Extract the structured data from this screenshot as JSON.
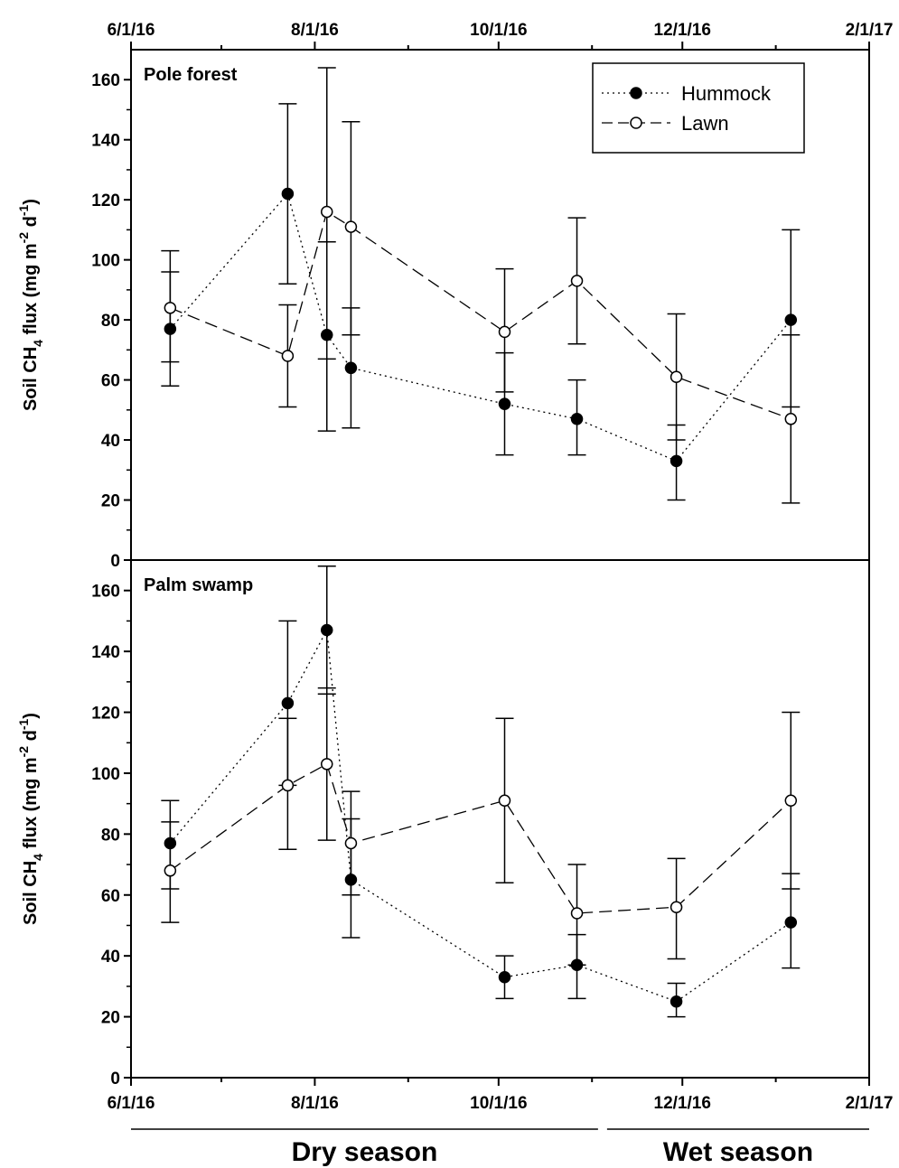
{
  "chart_data": [
    {
      "type": "line",
      "panel_label": "Pole forest",
      "ylabel_parts": [
        "Soil CH",
        "4",
        " flux (mg m",
        "-2",
        " d",
        "-1",
        ")"
      ],
      "ylim": [
        0,
        170
      ],
      "yticks": [
        0,
        20,
        40,
        60,
        80,
        100,
        120,
        140,
        160
      ],
      "xlim": [
        "2016-06-01",
        "2017-02-01"
      ],
      "xtick_labels": [
        "6/1/16",
        "8/1/16",
        "10/1/16",
        "12/1/16",
        "2/1/17"
      ],
      "xtick_label_position": "top",
      "legend": {
        "position": "top-right",
        "entries": [
          "Hummock",
          "Lawn"
        ]
      },
      "series": [
        {
          "name": "Hummock",
          "marker": "filled-circle",
          "line": "dotted",
          "points": [
            {
              "x": "2016-06-14",
              "y": 77,
              "err_low": 58,
              "err_high": 96
            },
            {
              "x": "2016-07-23",
              "y": 122,
              "err_low": 92,
              "err_high": 152
            },
            {
              "x": "2016-08-05",
              "y": 75,
              "err_low": 43,
              "err_high": 106
            },
            {
              "x": "2016-08-13",
              "y": 64,
              "err_low": 44,
              "err_high": 84
            },
            {
              "x": "2016-10-03",
              "y": 52,
              "err_low": 35,
              "err_high": 69
            },
            {
              "x": "2016-10-27",
              "y": 47,
              "err_low": 35,
              "err_high": 60
            },
            {
              "x": "2016-11-29",
              "y": 33,
              "err_low": 20,
              "err_high": 45
            },
            {
              "x": "2017-01-06",
              "y": 80,
              "err_low": 51,
              "err_high": 110
            }
          ]
        },
        {
          "name": "Lawn",
          "marker": "open-circle",
          "line": "dashed",
          "points": [
            {
              "x": "2016-06-14",
              "y": 84,
              "err_low": 66,
              "err_high": 103
            },
            {
              "x": "2016-07-23",
              "y": 68,
              "err_low": 51,
              "err_high": 85
            },
            {
              "x": "2016-08-05",
              "y": 116,
              "err_low": 67,
              "err_high": 164
            },
            {
              "x": "2016-08-13",
              "y": 111,
              "err_low": 75,
              "err_high": 146
            },
            {
              "x": "2016-10-03",
              "y": 76,
              "err_low": 56,
              "err_high": 97
            },
            {
              "x": "2016-10-27",
              "y": 93,
              "err_low": 72,
              "err_high": 114
            },
            {
              "x": "2016-11-29",
              "y": 61,
              "err_low": 40,
              "err_high": 82
            },
            {
              "x": "2017-01-06",
              "y": 47,
              "err_low": 19,
              "err_high": 75
            }
          ]
        }
      ]
    },
    {
      "type": "line",
      "panel_label": "Palm swamp",
      "ylabel_parts": [
        "Soil CH",
        "4",
        " flux (mg m",
        "-2",
        " d",
        "-1",
        ")"
      ],
      "ylim": [
        0,
        170
      ],
      "yticks": [
        0,
        20,
        40,
        60,
        80,
        100,
        120,
        140,
        160
      ],
      "xlim": [
        "2016-06-01",
        "2017-02-01"
      ],
      "xtick_labels": [
        "6/1/16",
        "8/1/16",
        "10/1/16",
        "12/1/16",
        "2/1/17"
      ],
      "xtick_label_position": "bottom",
      "series": [
        {
          "name": "Hummock",
          "marker": "filled-circle",
          "line": "dotted",
          "points": [
            {
              "x": "2016-06-14",
              "y": 77,
              "err_low": 62,
              "err_high": 91
            },
            {
              "x": "2016-07-23",
              "y": 123,
              "err_low": 96,
              "err_high": 150
            },
            {
              "x": "2016-08-05",
              "y": 147,
              "err_low": 126,
              "err_high": 168
            },
            {
              "x": "2016-08-13",
              "y": 65,
              "err_low": 46,
              "err_high": 85
            },
            {
              "x": "2016-10-03",
              "y": 33,
              "err_low": 26,
              "err_high": 40
            },
            {
              "x": "2016-10-27",
              "y": 37,
              "err_low": 26,
              "err_high": 47
            },
            {
              "x": "2016-11-29",
              "y": 25,
              "err_low": 20,
              "err_high": 31
            },
            {
              "x": "2017-01-06",
              "y": 51,
              "err_low": 36,
              "err_high": 67
            }
          ]
        },
        {
          "name": "Lawn",
          "marker": "open-circle",
          "line": "dashed",
          "points": [
            {
              "x": "2016-06-14",
              "y": 68,
              "err_low": 51,
              "err_high": 84
            },
            {
              "x": "2016-07-23",
              "y": 96,
              "err_low": 75,
              "err_high": 118
            },
            {
              "x": "2016-08-05",
              "y": 103,
              "err_low": 78,
              "err_high": 128
            },
            {
              "x": "2016-08-13",
              "y": 77,
              "err_low": 60,
              "err_high": 94
            },
            {
              "x": "2016-10-03",
              "y": 91,
              "err_low": 64,
              "err_high": 118
            },
            {
              "x": "2016-10-27",
              "y": 54,
              "err_low": 37,
              "err_high": 70
            },
            {
              "x": "2016-11-29",
              "y": 56,
              "err_low": 39,
              "err_high": 72
            },
            {
              "x": "2017-01-06",
              "y": 91,
              "err_low": 62,
              "err_high": 120
            }
          ]
        }
      ]
    }
  ],
  "seasons": [
    {
      "label": "Dry season",
      "start": "2016-06-01",
      "end": "2016-11-03"
    },
    {
      "label": "Wet season",
      "start": "2016-11-06",
      "end": "2017-02-01"
    }
  ]
}
